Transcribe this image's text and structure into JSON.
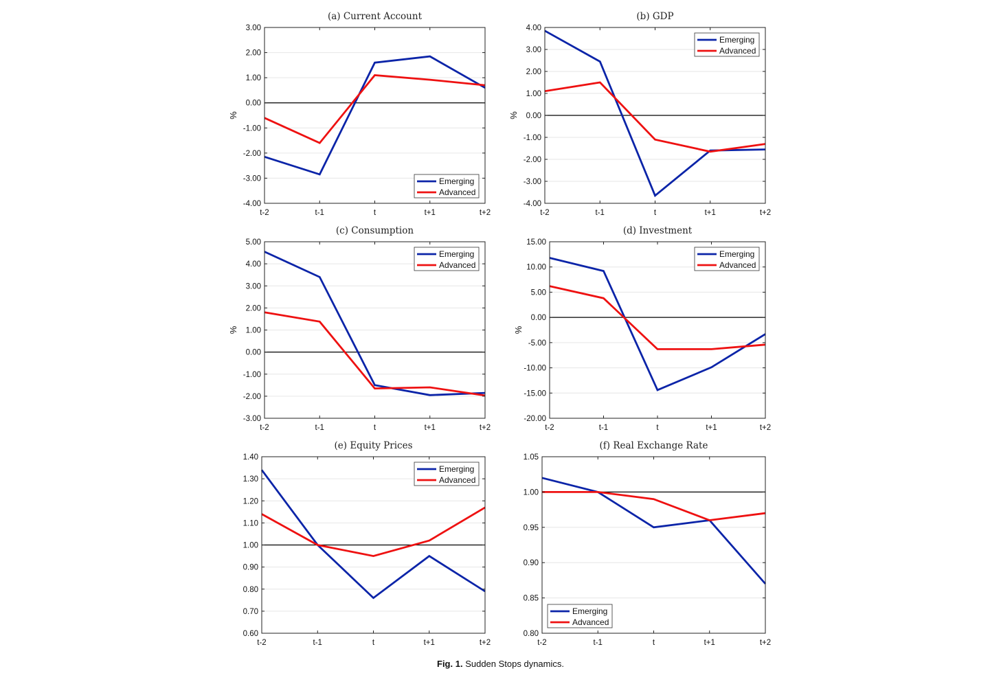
{
  "caption": {
    "label": "Fig. 1.",
    "text": "Sudden Stops dynamics."
  },
  "colors": {
    "emerging": "#0b24a8",
    "advanced": "#ee1111",
    "reference": "#000000",
    "grid": "#e6e6e6"
  },
  "chart_data": [
    {
      "type": "line",
      "title": "(a) Current Account",
      "ylabel": "%",
      "categories": [
        "t-2",
        "t-1",
        "t",
        "t+1",
        "t+2"
      ],
      "ylim": [
        -4,
        3
      ],
      "yticks": [
        -4,
        -3,
        -2,
        -1,
        0,
        1,
        2,
        3
      ],
      "ytick_decimals": 2,
      "reference_line": 0,
      "legend": "bottom-right",
      "series": [
        {
          "name": "Emerging",
          "values": [
            -2.15,
            -2.85,
            1.6,
            1.85,
            0.6
          ]
        },
        {
          "name": "Advanced",
          "values": [
            -0.6,
            -1.6,
            1.1,
            0.92,
            0.7
          ]
        }
      ]
    },
    {
      "type": "line",
      "title": "(b) GDP",
      "ylabel": "%",
      "categories": [
        "t-2",
        "t-1",
        "t",
        "t+1",
        "t+2"
      ],
      "ylim": [
        -4,
        4
      ],
      "yticks": [
        -4,
        -3,
        -2,
        -1,
        0,
        1,
        2,
        3,
        4
      ],
      "ytick_decimals": 2,
      "reference_line": 0,
      "legend": "top-right",
      "series": [
        {
          "name": "Emerging",
          "values": [
            3.85,
            2.45,
            -3.65,
            -1.6,
            -1.55
          ]
        },
        {
          "name": "Advanced",
          "values": [
            1.1,
            1.5,
            -1.1,
            -1.65,
            -1.3
          ]
        }
      ]
    },
    {
      "type": "line",
      "title": "(c) Consumption",
      "ylabel": "%",
      "categories": [
        "t-2",
        "t-1",
        "t",
        "t+1",
        "t+2"
      ],
      "ylim": [
        -3,
        5
      ],
      "yticks": [
        -3,
        -2,
        -1,
        0,
        1,
        2,
        3,
        4,
        5
      ],
      "ytick_decimals": 2,
      "reference_line": 0,
      "legend": "top-right",
      "series": [
        {
          "name": "Emerging",
          "values": [
            4.55,
            3.4,
            -1.5,
            -1.95,
            -1.85
          ]
        },
        {
          "name": "Advanced",
          "values": [
            1.8,
            1.38,
            -1.65,
            -1.6,
            -1.97
          ]
        }
      ]
    },
    {
      "type": "line",
      "title": "(d) Investment",
      "ylabel": "%",
      "categories": [
        "t-2",
        "t-1",
        "t",
        "t+1",
        "t+2"
      ],
      "ylim": [
        -20,
        15
      ],
      "yticks": [
        -20,
        -15,
        -10,
        -5,
        0,
        5,
        10,
        15
      ],
      "ytick_decimals": 2,
      "reference_line": 0,
      "legend": "top-right",
      "series": [
        {
          "name": "Emerging",
          "values": [
            11.8,
            9.2,
            -14.4,
            -9.9,
            -3.3
          ]
        },
        {
          "name": "Advanced",
          "values": [
            6.2,
            3.8,
            -6.3,
            -6.3,
            -5.4
          ]
        }
      ]
    },
    {
      "type": "line",
      "title": "(e) Equity Prices",
      "ylabel": "",
      "categories": [
        "t-2",
        "t-1",
        "t",
        "t+1",
        "t+2"
      ],
      "ylim": [
        0.6,
        1.4
      ],
      "yticks": [
        0.6,
        0.7,
        0.8,
        0.9,
        1.0,
        1.1,
        1.2,
        1.3,
        1.4
      ],
      "ytick_decimals": 2,
      "reference_line": 1,
      "legend": "top-right",
      "series": [
        {
          "name": "Emerging",
          "values": [
            1.34,
            1.0,
            0.76,
            0.95,
            0.79
          ]
        },
        {
          "name": "Advanced",
          "values": [
            1.14,
            1.0,
            0.95,
            1.02,
            1.17
          ]
        }
      ]
    },
    {
      "type": "line",
      "title": "(f) Real Exchange Rate",
      "ylabel": "",
      "categories": [
        "t-2",
        "t-1",
        "t",
        "t+1",
        "t+2"
      ],
      "ylim": [
        0.8,
        1.05
      ],
      "yticks": [
        0.8,
        0.85,
        0.9,
        0.95,
        1.0,
        1.05
      ],
      "ytick_decimals": 2,
      "reference_line": 1,
      "legend": "bottom-left",
      "series": [
        {
          "name": "Emerging",
          "values": [
            1.02,
            1.0,
            0.95,
            0.96,
            0.87
          ]
        },
        {
          "name": "Advanced",
          "values": [
            1.0,
            1.0,
            0.99,
            0.96,
            0.97
          ]
        }
      ]
    }
  ]
}
